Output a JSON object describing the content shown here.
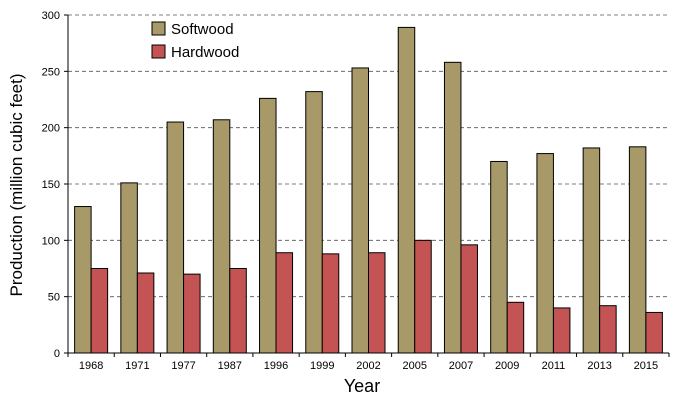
{
  "chart_data": {
    "type": "bar",
    "title": "",
    "xlabel": "Year",
    "ylabel": "Production (million cubic feet)",
    "categories": [
      "1968",
      "1971",
      "1977",
      "1987",
      "1996",
      "1999",
      "2002",
      "2005",
      "2007",
      "2009",
      "2011",
      "2013",
      "2015"
    ],
    "series": [
      {
        "name": "Softwood",
        "color": "#a89a68",
        "values": [
          130,
          151,
          205,
          207,
          226,
          232,
          253,
          289,
          258,
          170,
          177,
          182,
          183
        ]
      },
      {
        "name": "Hardwood",
        "color": "#c45454",
        "values": [
          75,
          71,
          70,
          75,
          89,
          88,
          89,
          100,
          96,
          45,
          40,
          42,
          36
        ]
      }
    ],
    "ylim": [
      0,
      300
    ],
    "yticks": [
      0,
      50,
      100,
      150,
      200,
      250,
      300
    ],
    "grid": "horizontal-dashed",
    "legend_position": "top-left"
  }
}
